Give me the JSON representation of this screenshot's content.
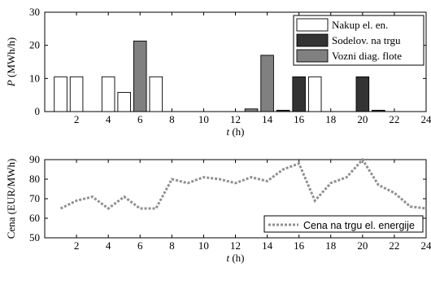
{
  "chart_data": [
    {
      "type": "bar",
      "ylabel_var": "P",
      "ylabel_unit": "(MWh/h)",
      "xlabel_var": "t",
      "xlabel_unit": "(h)",
      "xlim": [
        0,
        24
      ],
      "ylim": [
        0,
        30
      ],
      "xticks": [
        2,
        4,
        6,
        8,
        10,
        12,
        14,
        16,
        18,
        20,
        22,
        24
      ],
      "yticks": [
        0,
        10,
        20,
        30
      ],
      "grid": false,
      "legend_position": "top-right",
      "series": [
        {
          "name": "Nakup el. en.",
          "color": "#ffffff",
          "points": [
            [
              1,
              10.5
            ],
            [
              2,
              10.5
            ],
            [
              4,
              10.5
            ],
            [
              5,
              5.8
            ],
            [
              7,
              10.5
            ],
            [
              17,
              10.5
            ]
          ]
        },
        {
          "name": "Sodelov. na trgu",
          "color": "#333333",
          "points": [
            [
              15,
              0.4
            ],
            [
              16,
              10.5
            ],
            [
              20,
              10.5
            ],
            [
              21,
              0.4
            ]
          ]
        },
        {
          "name": "Vozni diag. flote",
          "color": "#808080",
          "points": [
            [
              6,
              21.3
            ],
            [
              13,
              0.8
            ],
            [
              14,
              17
            ]
          ]
        }
      ]
    },
    {
      "type": "line",
      "ylabel": "Cena (EUR/MWh)",
      "xlabel_var": "t",
      "xlabel_unit": "(h)",
      "xlim": [
        0,
        24
      ],
      "ylim": [
        50,
        90
      ],
      "xticks": [
        2,
        4,
        6,
        8,
        10,
        12,
        14,
        16,
        18,
        20,
        22,
        24
      ],
      "yticks": [
        50,
        60,
        70,
        80,
        90
      ],
      "grid": false,
      "legend_position": "bottom-right",
      "series": [
        {
          "name": "Cena na trgu el. energije",
          "color": "#909090",
          "x": [
            1,
            2,
            3,
            4,
            5,
            6,
            7,
            8,
            9,
            10,
            11,
            12,
            13,
            14,
            15,
            16,
            17,
            18,
            19,
            20,
            21,
            22,
            23,
            24
          ],
          "y": [
            65,
            69,
            71,
            65,
            71,
            65,
            65,
            80,
            78,
            81,
            80,
            78,
            81,
            79,
            85,
            88,
            69,
            78,
            81,
            90,
            77,
            73,
            66,
            65
          ]
        }
      ]
    }
  ]
}
